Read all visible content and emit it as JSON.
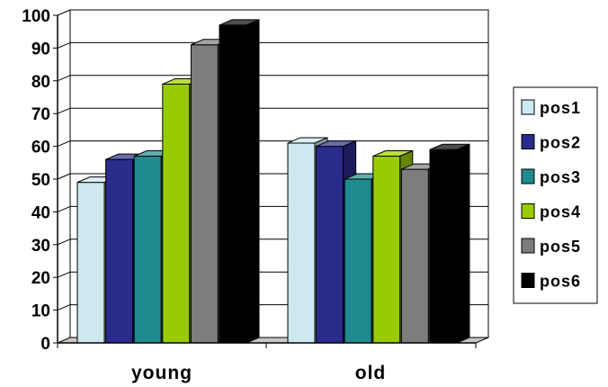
{
  "chart_data": {
    "type": "bar",
    "categories": [
      "young",
      "old"
    ],
    "series": [
      {
        "name": "pos1",
        "color": "#cde8ee",
        "values": [
          49,
          61
        ]
      },
      {
        "name": "pos2",
        "color": "#2b2b8c",
        "values": [
          56,
          60
        ]
      },
      {
        "name": "pos3",
        "color": "#1f8a8f",
        "values": [
          57,
          50
        ]
      },
      {
        "name": "pos4",
        "color": "#99cc00",
        "values": [
          79,
          57
        ]
      },
      {
        "name": "pos5",
        "color": "#7d7d7d",
        "values": [
          91,
          53
        ]
      },
      {
        "name": "pos6",
        "color": "#000000",
        "values": [
          97,
          59
        ]
      }
    ],
    "ylim": [
      0,
      100
    ],
    "yticks": [
      "0",
      "10",
      "20",
      "30",
      "40",
      "50",
      "60",
      "70",
      "80",
      "90",
      "100"
    ],
    "grid": true,
    "legend": "right",
    "style": "3d-clustered-column"
  }
}
